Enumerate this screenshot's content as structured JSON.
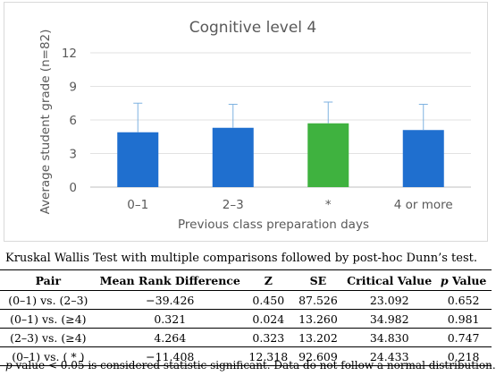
{
  "chart_data": {
    "type": "bar",
    "title": "Cognitive level 4",
    "xlabel": "Previous class preparation days",
    "ylabel": "Average student grade (n=82)",
    "categories": [
      "0–1",
      "2–3",
      "*",
      "4 or more"
    ],
    "values": [
      4.9,
      5.3,
      5.7,
      5.1
    ],
    "errors": [
      2.6,
      2.1,
      1.9,
      2.3
    ],
    "bar_colors": [
      "#1f6fcf",
      "#1f6fcf",
      "#3fb23f",
      "#1f6fcf"
    ],
    "error_bar_color": "#7fb2e0",
    "ylim": [
      0,
      12
    ],
    "yticks": [
      0,
      3,
      6,
      9,
      12
    ],
    "grid": true
  },
  "caption": "Kruskal Wallis Test with multiple comparisons followed by post-hoc Dunn’s test.",
  "table": {
    "headers": {
      "pair": "Pair",
      "mean_rank_difference": "Mean Rank Difference",
      "z": "Z",
      "se": "SE",
      "critical_value": "Critical Value",
      "p_value_italic": "p",
      "p_value_label": "Value"
    },
    "rows": [
      {
        "pair": "(0–1) vs. (2–3)",
        "mean_rank_difference": "−39.426",
        "z": "0.450",
        "se": "87.526",
        "critical_value": "23.092",
        "p_value": "0.652"
      },
      {
        "pair": "(0–1) vs. (≥4)",
        "mean_rank_difference": "0.321",
        "z": "0.024",
        "se": "13.260",
        "critical_value": "34.982",
        "p_value": "0.981"
      },
      {
        "pair": "(2–3) vs. (≥4)",
        "mean_rank_difference": "4.264",
        "z": "0.323",
        "se": "13.202",
        "critical_value": "34.830",
        "p_value": "0.747"
      },
      {
        "pair": "(0–1) vs. ( * )",
        "mean_rank_difference": "−11.408",
        "z": "12.318",
        "se": "92.609",
        "critical_value": "24.433",
        "p_value": "0.218"
      }
    ]
  },
  "footnote": {
    "p_italic": "p",
    "text": " value < 0.05 is considered statistic significant. Data do not follow a normal distribution."
  }
}
